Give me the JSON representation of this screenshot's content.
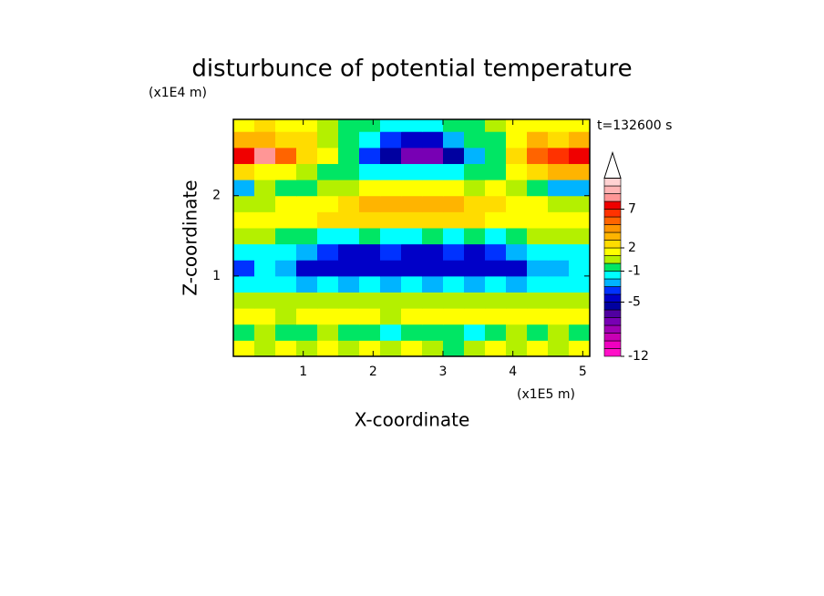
{
  "chart_data": {
    "type": "contour",
    "title": "disturbunce of potential temperature",
    "y_unit_label": "(x1E4 m)",
    "x_unit_label": "(x1E5 m)",
    "annotation": "t=132600 s",
    "x_label": "X-coordinate",
    "y_label": "Z-coordinate",
    "xlim": [
      0,
      5.1
    ],
    "ylim": [
      0,
      2.95
    ],
    "xticks": [
      1,
      2,
      3,
      4,
      5
    ],
    "yticks": [
      1,
      2
    ],
    "x": [
      0.15,
      0.45,
      0.75,
      1.05,
      1.35,
      1.65,
      1.95,
      2.25,
      2.55,
      2.85,
      3.15,
      3.45,
      3.75,
      4.05,
      4.35,
      4.65,
      4.95
    ],
    "y": [
      0.1,
      0.3,
      0.5,
      0.7,
      0.9,
      1.1,
      1.3,
      1.5,
      1.7,
      1.9,
      2.1,
      2.3,
      2.5,
      2.7,
      2.9
    ],
    "z": [
      [
        1,
        0,
        1,
        0,
        1,
        0,
        1,
        0,
        1,
        0,
        -1,
        0,
        1,
        0,
        1,
        0,
        1
      ],
      [
        -0.5,
        0,
        -1,
        -0.5,
        0,
        -1,
        -1,
        -1.5,
        -1,
        -1,
        -1,
        -1.5,
        -1,
        0,
        -0.5,
        0,
        -0.5
      ],
      [
        1,
        1.5,
        0.5,
        1,
        1.5,
        1.5,
        1,
        0.5,
        1.5,
        1.5,
        1.5,
        1.5,
        1,
        1.5,
        1,
        1.5,
        1
      ],
      [
        0,
        0.5,
        0,
        0.5,
        0,
        0.5,
        0,
        0.5,
        0,
        0.5,
        0,
        0.5,
        0,
        0.5,
        0,
        0.5,
        0
      ],
      [
        -1.5,
        -2,
        -2,
        -2.5,
        -2,
        -2.5,
        -2,
        -2.5,
        -2,
        -2.5,
        -2,
        -2.5,
        -2,
        -2.5,
        -2,
        -2,
        -1.5
      ],
      [
        -3.5,
        -2,
        -2.5,
        -4.5,
        -5,
        -5,
        -4.5,
        -5,
        -5,
        -4.5,
        -5,
        -5,
        -4.5,
        -4.5,
        -3,
        -2.5,
        -2
      ],
      [
        -1.5,
        -1.5,
        -2,
        -2.5,
        -4,
        -4.5,
        -4.5,
        -4,
        -4.5,
        -4.5,
        -4,
        -4.5,
        -4,
        -3,
        -2,
        -1.5,
        -1.5
      ],
      [
        0.5,
        0,
        -0.5,
        -1,
        -1.5,
        -1.5,
        -1,
        -1.5,
        -1.5,
        -1,
        -1.5,
        -1,
        -1.5,
        -1,
        0,
        0.5,
        0.5
      ],
      [
        1.5,
        1.5,
        1,
        1.5,
        2,
        2,
        2,
        2,
        2,
        2,
        2,
        2,
        1.5,
        1.5,
        1,
        1.5,
        1.5
      ],
      [
        0.5,
        0.5,
        1,
        1.5,
        1.5,
        2.5,
        3,
        3.5,
        3.5,
        3.5,
        3,
        2.5,
        2,
        1.5,
        1,
        0.5,
        0.5
      ],
      [
        -3,
        0,
        -0.5,
        -1,
        0.5,
        0.5,
        1,
        1,
        1,
        1,
        1,
        0.5,
        1,
        0.5,
        -1,
        -3,
        -3
      ],
      [
        2,
        1.5,
        1,
        0.5,
        -0.5,
        -1,
        -1.5,
        -2,
        -2,
        -2,
        -2,
        -1,
        -0.5,
        1,
        2,
        3,
        3.5
      ],
      [
        7.5,
        8.5,
        5,
        2.5,
        1,
        -1,
        -4,
        -6,
        -7.5,
        -7.5,
        -6,
        -3,
        -1,
        2,
        5,
        6.5,
        7
      ],
      [
        3,
        3,
        2.5,
        2,
        0.5,
        -0.5,
        -1.5,
        -4,
        -4.5,
        -4.5,
        -3,
        -1,
        -0.5,
        1.5,
        3,
        2.5,
        3
      ],
      [
        1.5,
        2,
        1.5,
        1,
        0.5,
        -0.5,
        -1,
        -1.5,
        -1.5,
        -1.5,
        -1,
        -0.5,
        0,
        1,
        1.5,
        1,
        1
      ]
    ],
    "levels": [
      -12,
      -11,
      -10,
      -9,
      -8,
      -7,
      -6,
      -5,
      -4,
      -3,
      -2,
      -1,
      0,
      1,
      2,
      3,
      4,
      5,
      6,
      7,
      8,
      9,
      10,
      11
    ],
    "colors": [
      "#ff10c8",
      "#f000c0",
      "#c800b4",
      "#a000b4",
      "#7800b4",
      "#5000a0",
      "#0000a0",
      "#0000c8",
      "#0032ff",
      "#00b4ff",
      "#00ffff",
      "#00e664",
      "#b4f000",
      "#ffff00",
      "#ffdc00",
      "#ffb400",
      "#ff9600",
      "#ff6400",
      "#ff3200",
      "#f00000",
      "#ff9696",
      "#ffb4b4",
      "#ffd2d2"
    ],
    "extend_color": "#ffffff",
    "colorbar_ticks": [
      -12,
      -5,
      -1,
      2,
      7
    ]
  }
}
